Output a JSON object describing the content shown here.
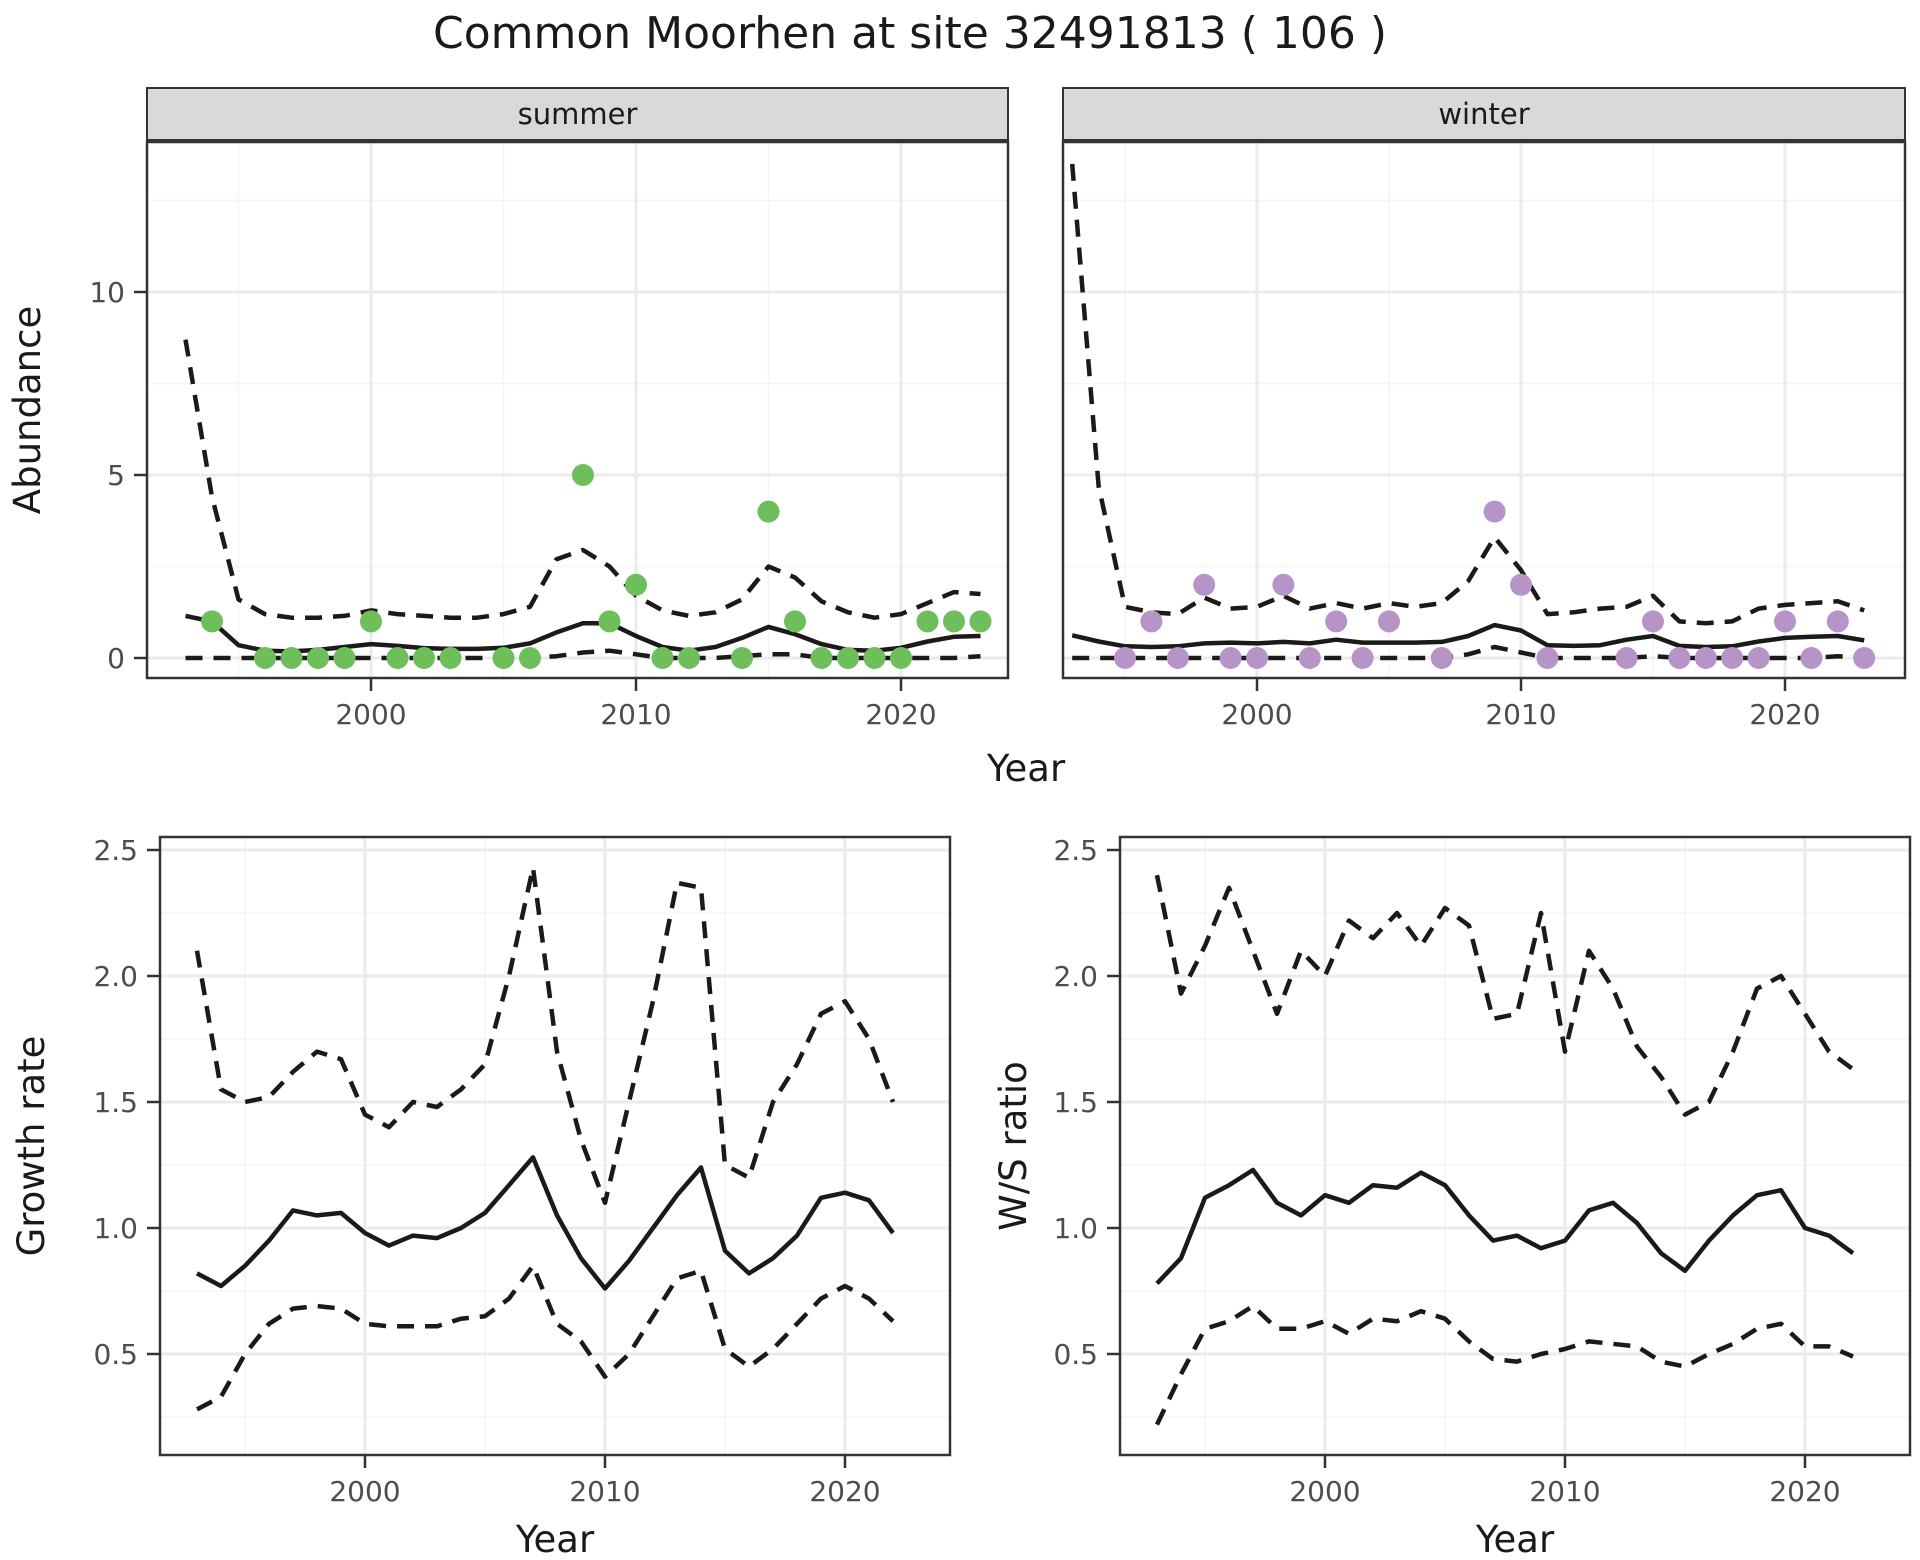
{
  "page": {
    "title": "Common Moorhen at site 32491813 ( 106 )"
  },
  "colors": {
    "summer_point": "#6ebe5c",
    "winter_point": "#b694c8",
    "line": "#1a1a1a",
    "strip_bg": "#d9d9d9",
    "panel_border": "#333333",
    "grid_major": "#ebebeb",
    "grid_minor": "#f5f5f5",
    "tick_text": "#4d4d4d"
  },
  "chart_data": [
    {
      "id": "abundance-summer",
      "type": "line",
      "facet_label": "summer",
      "ylabel": "Abundance",
      "xlabel": "Year",
      "ylim": [
        -0.5,
        14.1
      ],
      "xlim": [
        1991.5,
        2024
      ],
      "yticks": [
        0,
        5,
        10
      ],
      "ytick_labels": [
        "0",
        "5",
        "10"
      ],
      "xticks": [
        2000,
        2010,
        2020
      ],
      "xtick_labels": [
        "2000",
        "2010",
        "2020"
      ],
      "grid": true,
      "legend": "none",
      "years": [
        1993,
        1994,
        1995,
        1996,
        1997,
        1998,
        1999,
        2000,
        2001,
        2002,
        2003,
        2004,
        2005,
        2006,
        2007,
        2008,
        2009,
        2010,
        2011,
        2012,
        2013,
        2014,
        2015,
        2016,
        2017,
        2018,
        2019,
        2020,
        2021,
        2022,
        2023
      ],
      "series": [
        {
          "name": "median",
          "style": "solid",
          "values": [
            1.15,
            1.0,
            0.35,
            0.2,
            0.18,
            0.22,
            0.3,
            0.38,
            0.33,
            0.27,
            0.25,
            0.25,
            0.28,
            0.4,
            0.7,
            0.95,
            0.95,
            0.6,
            0.3,
            0.2,
            0.3,
            0.55,
            0.85,
            0.65,
            0.38,
            0.22,
            0.2,
            0.28,
            0.45,
            0.58,
            0.6
          ]
        },
        {
          "name": "upper-ci",
          "style": "dashed",
          "values": [
            8.7,
            4.4,
            1.6,
            1.2,
            1.1,
            1.1,
            1.15,
            1.3,
            1.2,
            1.15,
            1.1,
            1.1,
            1.2,
            1.4,
            2.7,
            2.95,
            2.5,
            1.7,
            1.3,
            1.15,
            1.25,
            1.6,
            2.5,
            2.2,
            1.55,
            1.25,
            1.1,
            1.2,
            1.5,
            1.8,
            1.75
          ]
        },
        {
          "name": "lower-ci",
          "style": "dashed",
          "values": [
            0,
            0,
            0,
            0,
            0,
            0,
            0,
            0,
            0,
            0,
            0,
            0,
            0,
            0,
            0.05,
            0.15,
            0.2,
            0.1,
            0,
            0,
            0,
            0.05,
            0.1,
            0.1,
            0,
            0,
            0,
            0,
            0,
            0,
            0.05
          ]
        }
      ],
      "points": {
        "name": "observed-counts-summer",
        "color": "#6ebe5c",
        "years": [
          1994,
          1996,
          1997,
          1998,
          1999,
          2000,
          2001,
          2002,
          2003,
          2005,
          2006,
          2008,
          2009,
          2010,
          2011,
          2012,
          2014,
          2015,
          2016,
          2017,
          2018,
          2019,
          2020,
          2021,
          2022,
          2023
        ],
        "values": [
          1,
          0,
          0,
          0,
          0,
          1,
          0,
          0,
          0,
          0,
          0,
          5,
          1,
          2,
          0,
          0,
          0,
          4,
          1,
          0,
          0,
          0,
          0,
          1,
          1,
          1
        ]
      }
    },
    {
      "id": "abundance-winter",
      "type": "line",
      "facet_label": "winter",
      "ylabel": "Abundance",
      "xlabel": "Year",
      "ylim": [
        -0.5,
        14.1
      ],
      "xlim": [
        1992.6,
        2024.5
      ],
      "yticks": [
        0,
        5,
        10
      ],
      "ytick_labels": [
        "0",
        "5",
        "10"
      ],
      "xticks": [
        2000,
        2010,
        2020
      ],
      "xtick_labels": [
        "2000",
        "2010",
        "2020"
      ],
      "grid": true,
      "legend": "none",
      "years": [
        1993,
        1994,
        1995,
        1996,
        1997,
        1998,
        1999,
        2000,
        2001,
        2002,
        2003,
        2004,
        2005,
        2006,
        2007,
        2008,
        2009,
        2010,
        2011,
        2012,
        2013,
        2014,
        2015,
        2016,
        2017,
        2018,
        2019,
        2020,
        2021,
        2022,
        2023
      ],
      "series": [
        {
          "name": "median",
          "style": "solid",
          "values": [
            0.62,
            0.45,
            0.32,
            0.3,
            0.32,
            0.4,
            0.42,
            0.4,
            0.44,
            0.4,
            0.5,
            0.42,
            0.42,
            0.42,
            0.44,
            0.6,
            0.9,
            0.75,
            0.35,
            0.33,
            0.35,
            0.5,
            0.6,
            0.33,
            0.3,
            0.32,
            0.45,
            0.55,
            0.58,
            0.6,
            0.48
          ]
        },
        {
          "name": "upper-ci",
          "style": "dashed",
          "values": [
            13.5,
            4.7,
            1.4,
            1.25,
            1.2,
            1.65,
            1.35,
            1.4,
            1.7,
            1.35,
            1.5,
            1.35,
            1.5,
            1.4,
            1.5,
            2.1,
            3.3,
            2.4,
            1.2,
            1.25,
            1.35,
            1.4,
            1.7,
            1.0,
            0.95,
            1.0,
            1.35,
            1.45,
            1.5,
            1.55,
            1.3
          ]
        },
        {
          "name": "lower-ci",
          "style": "dashed",
          "values": [
            0,
            0,
            0,
            0,
            0,
            0,
            0,
            0,
            0,
            0,
            0,
            0,
            0,
            0,
            0,
            0.1,
            0.3,
            0.15,
            0,
            0,
            0,
            0,
            0.05,
            0,
            0,
            0,
            0,
            0,
            0,
            0.05,
            0
          ]
        }
      ],
      "points": {
        "name": "observed-counts-winter",
        "color": "#b694c8",
        "years": [
          1995,
          1996,
          1997,
          1998,
          1999,
          2000,
          2001,
          2002,
          2003,
          2004,
          2005,
          2007,
          2009,
          2010,
          2011,
          2014,
          2015,
          2016,
          2017,
          2018,
          2019,
          2020,
          2021,
          2022,
          2023
        ],
        "values": [
          0,
          1,
          0,
          2,
          0,
          0,
          2,
          0,
          1,
          0,
          1,
          0,
          4,
          2,
          0,
          0,
          1,
          0,
          0,
          0,
          0,
          1,
          0,
          1,
          0
        ]
      }
    },
    {
      "id": "growth-rate",
      "type": "line",
      "facet_label": "",
      "ylabel": "Growth rate",
      "xlabel": "Year",
      "ylim": [
        0.1,
        2.55
      ],
      "xlim": [
        1991.5,
        2024.4
      ],
      "yticks": [
        0.5,
        1.0,
        1.5,
        2.0,
        2.5
      ],
      "ytick_labels": [
        "0.5",
        "1.0",
        "1.5",
        "2.0",
        "2.5"
      ],
      "xticks": [
        2000,
        2010,
        2020
      ],
      "xtick_labels": [
        "2000",
        "2010",
        "2020"
      ],
      "grid": true,
      "legend": "none",
      "years": [
        1993,
        1994,
        1995,
        1996,
        1997,
        1998,
        1999,
        2000,
        2001,
        2002,
        2003,
        2004,
        2005,
        2006,
        2007,
        2008,
        2009,
        2010,
        2011,
        2012,
        2013,
        2014,
        2015,
        2016,
        2017,
        2018,
        2019,
        2020,
        2021,
        2022
      ],
      "series": [
        {
          "name": "median",
          "style": "solid",
          "values": [
            0.82,
            0.77,
            0.85,
            0.95,
            1.07,
            1.05,
            1.06,
            0.98,
            0.93,
            0.97,
            0.96,
            1.0,
            1.06,
            1.17,
            1.28,
            1.05,
            0.88,
            0.76,
            0.87,
            1.0,
            1.13,
            1.24,
            0.91,
            0.82,
            0.88,
            0.97,
            1.12,
            1.14,
            1.11,
            0.98
          ]
        },
        {
          "name": "upper-ci",
          "style": "dashed",
          "values": [
            2.1,
            1.55,
            1.5,
            1.52,
            1.62,
            1.7,
            1.67,
            1.45,
            1.4,
            1.5,
            1.48,
            1.55,
            1.65,
            2.0,
            2.43,
            1.7,
            1.35,
            1.1,
            1.5,
            1.9,
            2.37,
            2.35,
            1.25,
            1.2,
            1.5,
            1.65,
            1.85,
            1.9,
            1.75,
            1.5
          ]
        },
        {
          "name": "lower-ci",
          "style": "dashed",
          "values": [
            0.28,
            0.33,
            0.5,
            0.62,
            0.68,
            0.69,
            0.68,
            0.62,
            0.61,
            0.61,
            0.61,
            0.64,
            0.65,
            0.72,
            0.85,
            0.62,
            0.55,
            0.41,
            0.5,
            0.65,
            0.8,
            0.83,
            0.52,
            0.45,
            0.52,
            0.62,
            0.72,
            0.77,
            0.72,
            0.63
          ]
        }
      ],
      "points": null
    },
    {
      "id": "ws-ratio",
      "type": "line",
      "facet_label": "",
      "ylabel": "W/S ratio",
      "xlabel": "Year",
      "ylim": [
        0.1,
        2.55
      ],
      "xlim": [
        1991.5,
        2024.4
      ],
      "yticks": [
        0.5,
        1.0,
        1.5,
        2.0,
        2.5
      ],
      "ytick_labels": [
        "0.5",
        "1.0",
        "1.5",
        "2.0",
        "2.5"
      ],
      "xticks": [
        2000,
        2010,
        2020
      ],
      "xtick_labels": [
        "2000",
        "2010",
        "2020"
      ],
      "grid": true,
      "legend": "none",
      "years": [
        1993,
        1994,
        1995,
        1996,
        1997,
        1998,
        1999,
        2000,
        2001,
        2002,
        2003,
        2004,
        2005,
        2006,
        2007,
        2008,
        2009,
        2010,
        2011,
        2012,
        2013,
        2014,
        2015,
        2016,
        2017,
        2018,
        2019,
        2020,
        2021,
        2022
      ],
      "series": [
        {
          "name": "median",
          "style": "solid",
          "values": [
            0.78,
            0.88,
            1.12,
            1.17,
            1.23,
            1.1,
            1.05,
            1.13,
            1.1,
            1.17,
            1.16,
            1.22,
            1.17,
            1.05,
            0.95,
            0.97,
            0.92,
            0.95,
            1.07,
            1.1,
            1.02,
            0.9,
            0.83,
            0.95,
            1.05,
            1.13,
            1.15,
            1.0,
            0.97,
            0.9
          ]
        },
        {
          "name": "upper-ci",
          "style": "dashed",
          "values": [
            2.4,
            1.93,
            2.12,
            2.35,
            2.1,
            1.85,
            2.1,
            2.0,
            2.22,
            2.15,
            2.25,
            2.12,
            2.27,
            2.2,
            1.83,
            1.85,
            2.25,
            1.7,
            2.1,
            1.95,
            1.72,
            1.6,
            1.45,
            1.5,
            1.7,
            1.95,
            2.0,
            1.85,
            1.7,
            1.63
          ]
        },
        {
          "name": "lower-ci",
          "style": "dashed",
          "values": [
            0.22,
            0.42,
            0.6,
            0.63,
            0.69,
            0.6,
            0.6,
            0.63,
            0.58,
            0.64,
            0.63,
            0.67,
            0.64,
            0.55,
            0.48,
            0.47,
            0.5,
            0.52,
            0.55,
            0.54,
            0.53,
            0.47,
            0.45,
            0.5,
            0.54,
            0.6,
            0.62,
            0.53,
            0.53,
            0.49
          ]
        }
      ],
      "points": null
    }
  ]
}
